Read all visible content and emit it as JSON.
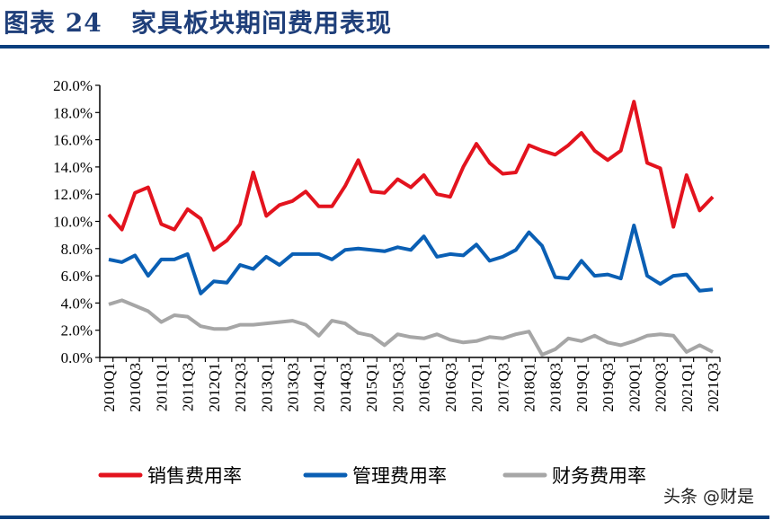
{
  "header": {
    "figure_label": "图表 24",
    "title": "家具板块期间费用表现"
  },
  "watermark": "头条 @财是",
  "chart_data": {
    "type": "line",
    "title": "家具板块期间费用表现",
    "xlabel": "",
    "ylabel": "",
    "ylim": [
      0,
      20
    ],
    "y_ticks": [
      "0.0%",
      "2.0%",
      "4.0%",
      "6.0%",
      "8.0%",
      "10.0%",
      "12.0%",
      "14.0%",
      "16.0%",
      "18.0%",
      "20.0%"
    ],
    "grid": false,
    "legend_position": "bottom",
    "x": [
      "2010Q1",
      "2010Q2",
      "2010Q3",
      "2010Q4",
      "2011Q1",
      "2011Q2",
      "2011Q3",
      "2011Q4",
      "2012Q1",
      "2012Q2",
      "2012Q3",
      "2012Q4",
      "2013Q1",
      "2013Q2",
      "2013Q3",
      "2013Q4",
      "2014Q1",
      "2014Q2",
      "2014Q3",
      "2014Q4",
      "2015Q1",
      "2015Q2",
      "2015Q3",
      "2015Q4",
      "2016Q1",
      "2016Q2",
      "2016Q3",
      "2016Q4",
      "2017Q1",
      "2017Q2",
      "2017Q3",
      "2017Q4",
      "2018Q1",
      "2018Q2",
      "2018Q3",
      "2018Q4",
      "2019Q1",
      "2019Q2",
      "2019Q3",
      "2019Q4",
      "2020Q1",
      "2020Q2",
      "2020Q3",
      "2020Q4",
      "2021Q1",
      "2021Q2",
      "2021Q3"
    ],
    "x_tick_labels": [
      "2010Q1",
      "2010Q3",
      "2011Q1",
      "2011Q3",
      "2012Q1",
      "2012Q3",
      "2013Q1",
      "2013Q3",
      "2014Q1",
      "2014Q3",
      "2015Q1",
      "2015Q3",
      "2016Q1",
      "2016Q3",
      "2017Q1",
      "2017Q3",
      "2018Q1",
      "2018Q3",
      "2019Q1",
      "2019Q3",
      "2020Q1",
      "2020Q3",
      "2021Q1",
      "2021Q3"
    ],
    "series": [
      {
        "name": "销售费用率",
        "color": "#e3131e",
        "values": [
          10.5,
          9.4,
          12.1,
          12.5,
          9.8,
          9.4,
          10.9,
          10.2,
          7.9,
          8.6,
          9.8,
          13.6,
          10.4,
          11.2,
          11.5,
          12.2,
          11.1,
          11.1,
          12.6,
          14.5,
          12.2,
          12.1,
          13.1,
          12.5,
          13.4,
          12.0,
          11.8,
          14.0,
          15.7,
          14.3,
          13.5,
          13.6,
          15.6,
          15.2,
          14.9,
          15.6,
          16.5,
          15.2,
          14.5,
          15.2,
          18.8,
          14.3,
          13.9,
          9.6,
          13.4,
          10.8,
          11.8
        ]
      },
      {
        "name": "管理费用率",
        "color": "#0a5fb4",
        "values": [
          7.2,
          7.0,
          7.5,
          6.0,
          7.2,
          7.2,
          7.6,
          4.7,
          5.6,
          5.5,
          6.8,
          6.5,
          7.4,
          6.8,
          7.6,
          7.6,
          7.6,
          7.2,
          7.9,
          8.0,
          7.9,
          7.8,
          8.1,
          7.9,
          8.9,
          7.4,
          7.6,
          7.5,
          8.3,
          7.1,
          7.4,
          7.9,
          9.2,
          8.2,
          5.9,
          5.8,
          7.1,
          6.0,
          6.1,
          5.8,
          9.7,
          6.0,
          5.4,
          6.0,
          6.1,
          4.9,
          5.0
        ]
      },
      {
        "name": "财务费用率",
        "color": "#a6a6a6",
        "values": [
          3.9,
          4.2,
          3.8,
          3.4,
          2.6,
          3.1,
          3.0,
          2.3,
          2.1,
          2.1,
          2.4,
          2.4,
          2.5,
          2.6,
          2.7,
          2.4,
          1.6,
          2.7,
          2.5,
          1.8,
          1.6,
          0.9,
          1.7,
          1.5,
          1.4,
          1.7,
          1.3,
          1.1,
          1.2,
          1.5,
          1.4,
          1.7,
          1.9,
          0.2,
          0.6,
          1.4,
          1.2,
          1.6,
          1.1,
          0.9,
          1.2,
          1.6,
          1.7,
          1.6,
          0.4,
          0.9,
          0.4
        ]
      }
    ]
  }
}
